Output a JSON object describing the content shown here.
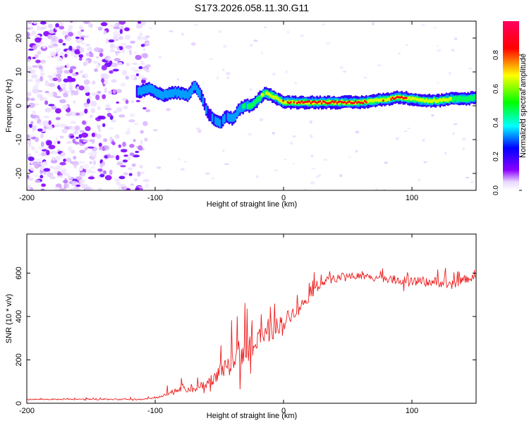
{
  "figure_title": "S173.2026.058.11.30.G11",
  "colors": {
    "snr_line": "#ee2020",
    "axis": "#000000",
    "background": "#ffffff"
  },
  "chart_data": [
    {
      "type": "heatmap",
      "title": "S173.2026.058.11.30.G11",
      "xlabel": "Height of straight line (km)",
      "ylabel": "Frequency (Hz)",
      "xlim": [
        -200,
        150
      ],
      "ylim": [
        -25,
        25
      ],
      "x_ticks": [
        -200,
        -100,
        0,
        100
      ],
      "y_ticks": [
        -20,
        -10,
        0,
        10,
        20
      ],
      "colorbar": {
        "label": "Normalized spectral amplitude",
        "range": [
          0,
          1
        ],
        "ticks": [
          "0.0",
          "0.2",
          "0.4",
          "0.6",
          "0.8"
        ],
        "colormap": [
          "#ffffff",
          "#8a00ff",
          "#0000ff",
          "#00ffff",
          "#00ff00",
          "#ffff00",
          "#ff0000",
          "#ff0060"
        ]
      },
      "ridge": {
        "description": "dominant frequency (Hz) of the bright ridge vs height (km)",
        "x": [
          -115,
          -105,
          -95,
          -85,
          -75,
          -70,
          -65,
          -60,
          -55,
          -50,
          -45,
          -40,
          -35,
          -30,
          -25,
          -20,
          -15,
          -10,
          0,
          20,
          40,
          60,
          70,
          80,
          90,
          100,
          110,
          120,
          130,
          140,
          150
        ],
        "y": [
          4,
          5,
          3,
          4,
          3,
          6,
          3,
          -2,
          -4,
          -5,
          -3,
          -4,
          -1,
          0,
          0,
          2,
          4,
          3,
          1,
          1,
          1,
          1,
          1.5,
          2,
          2.5,
          2,
          1.5,
          1.5,
          2,
          2,
          2.5
        ],
        "amplitude": [
          0.3,
          0.4,
          0.35,
          0.35,
          0.4,
          0.35,
          0.3,
          0.3,
          0.3,
          0.3,
          0.3,
          0.35,
          0.4,
          0.45,
          0.5,
          0.55,
          0.6,
          0.65,
          0.8,
          0.9,
          0.9,
          0.85,
          0.75,
          0.8,
          0.9,
          0.75,
          0.7,
          0.75,
          0.6,
          0.55,
          0.55
        ]
      },
      "noise_region_km": [
        -200,
        -110
      ],
      "noise_level": 0.1
    },
    {
      "type": "line",
      "xlabel": "Height of straight line (km)",
      "ylabel": "SNR (10 * v/v)",
      "xlim": [
        -200,
        150
      ],
      "ylim": [
        0,
        780
      ],
      "x_ticks": [
        -200,
        -100,
        0,
        100
      ],
      "y_ticks": [
        0,
        200,
        400,
        600
      ],
      "series": [
        {
          "name": "SNR",
          "envelope_x": [
            -200,
            -110,
            -95,
            -80,
            -70,
            -60,
            -50,
            -40,
            -30,
            -20,
            -10,
            0,
            10,
            20,
            30,
            50,
            80,
            100,
            120,
            130,
            140,
            150
          ],
          "envelope_y": [
            18,
            18,
            30,
            70,
            60,
            90,
            140,
            180,
            240,
            280,
            330,
            380,
            430,
            490,
            560,
            590,
            575,
            560,
            560,
            540,
            570,
            580
          ],
          "spike_amplitude_y": [
            8,
            8,
            15,
            70,
            50,
            80,
            120,
            160,
            200,
            190,
            160,
            120,
            90,
            70,
            60,
            55,
            60,
            70,
            70,
            70,
            60,
            50
          ]
        }
      ]
    }
  ]
}
